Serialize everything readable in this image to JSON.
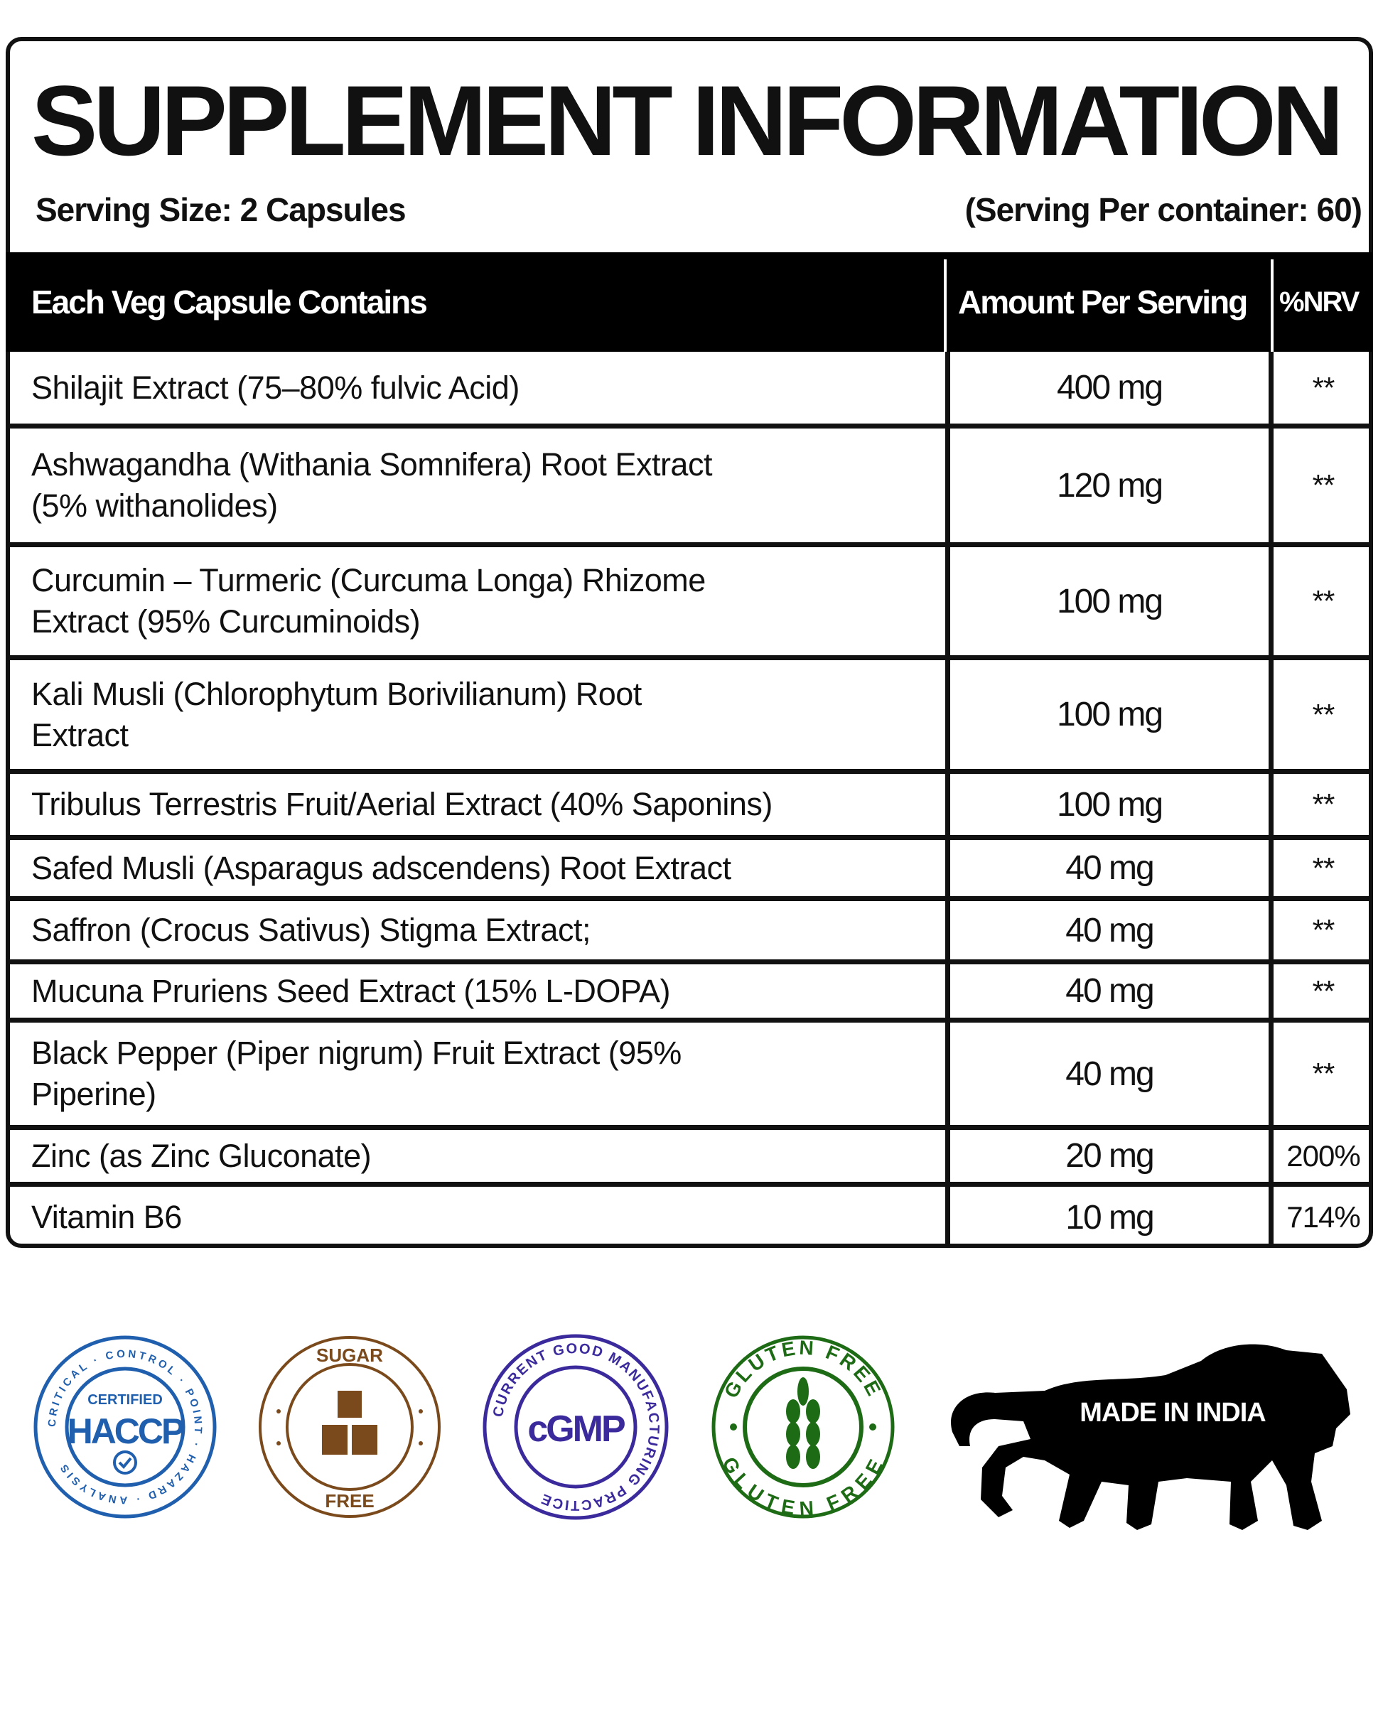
{
  "title": "SUPPLEMENT INFORMATION",
  "serving_size": "Serving Size: 2 Capsules",
  "servings_per_container": "(Serving Per container: 60)",
  "table": {
    "headers": [
      "Each Veg Capsule Contains",
      "Amount Per Serving",
      "%NRV"
    ],
    "rows": [
      {
        "name": "Shilajit Extract (75–80% fulvic Acid)",
        "amount": "400 mg",
        "nrv": "**"
      },
      {
        "name": "Ashwagandha (Withania Somnifera) Root Extract (5% withanolides)",
        "amount": "120 mg",
        "nrv": "**"
      },
      {
        "name": "Curcumin – Turmeric (Curcuma Longa) Rhizome Extract (95% Curcuminoids)",
        "amount": "100 mg",
        "nrv": "**"
      },
      {
        "name": "Kali Musli (Chlorophytum Borivilianum) Root Extract",
        "amount": "100 mg",
        "nrv": "**"
      },
      {
        "name": "Tribulus Terrestris Fruit/Aerial Extract (40% Saponins)",
        "amount": "100 mg",
        "nrv": "**"
      },
      {
        "name": "Safed Musli (Asparagus adscendens) Root Extract",
        "amount": "40 mg",
        "nrv": "**"
      },
      {
        "name": "Saffron (Crocus Sativus) Stigma Extract;",
        "amount": "40 mg",
        "nrv": "**"
      },
      {
        "name": "Mucuna Pruriens Seed Extract (15% L-DOPA)",
        "amount": "40 mg",
        "nrv": "**"
      },
      {
        "name": "Black Pepper (Piper nigrum) Fruit Extract (95% Piperine)",
        "amount": "40 mg",
        "nrv": "**"
      },
      {
        "name": "Zinc (as Zinc Gluconate)",
        "amount": "20 mg",
        "nrv": "200%"
      },
      {
        "name": "Vitamin B6",
        "amount": "10 mg",
        "nrv": "714%"
      }
    ]
  },
  "badges": {
    "haccp": {
      "top": "CRITICAL · CONTROL · POINT · HAZARD · ANALYSIS",
      "certified": "CERTIFIED",
      "main": "HACCP",
      "color": "#1f5fae",
      "icon": "check-shield-icon"
    },
    "sugar_free": {
      "top": "SUGAR",
      "bottom": "FREE",
      "color": "#7a4a1c",
      "icon": "sugar-cubes-icon"
    },
    "cgmp": {
      "ring": "CURRENT GOOD MANUFACTURING PRACTICE",
      "main": "cGMP",
      "color": "#3a2a9c"
    },
    "gluten_free": {
      "top": "GLUTEN FREE",
      "bottom": "GLUTEN FREE",
      "color": "#1e6b16",
      "icon": "wheat-icon"
    },
    "made_in_india": {
      "label": "MADE IN INDIA",
      "icon": "lion-icon"
    }
  }
}
